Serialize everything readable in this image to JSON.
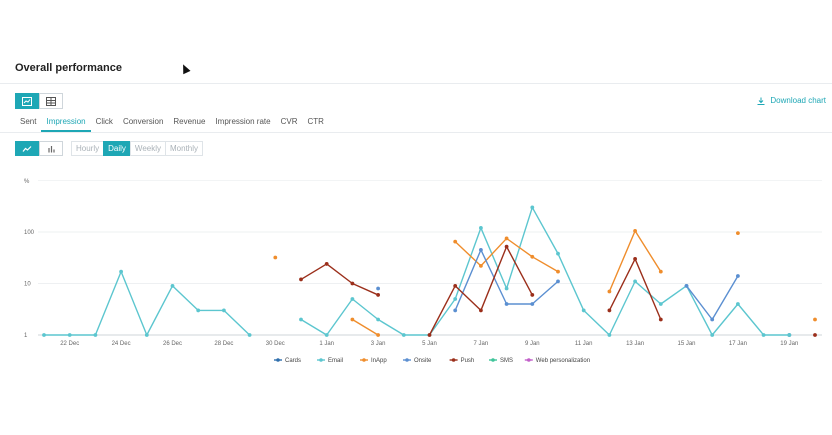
{
  "title": "Overall performance",
  "download_label": "Download chart",
  "tabs": [
    "Sent",
    "Impression",
    "Click",
    "Conversion",
    "Revenue",
    "Impression rate",
    "CVR",
    "CTR"
  ],
  "active_tab": "Impression",
  "granularity": [
    "Hourly",
    "Daily",
    "Weekly",
    "Monthly"
  ],
  "active_granularity": "Daily",
  "chart_data": {
    "type": "line",
    "yscale": "log",
    "y_unit_label": "%",
    "y_ticks": [
      1,
      10,
      100
    ],
    "x_ticks": [
      "22 Dec",
      "24 Dec",
      "26 Dec",
      "28 Dec",
      "30 Dec",
      "1 Jan",
      "3 Jan",
      "5 Jan",
      "7 Jan",
      "9 Jan",
      "11 Jan",
      "13 Jan",
      "15 Jan",
      "17 Jan",
      "19 Jan"
    ],
    "x": [
      "21 Dec",
      "22 Dec",
      "23 Dec",
      "24 Dec",
      "25 Dec",
      "26 Dec",
      "27 Dec",
      "28 Dec",
      "29 Dec",
      "30 Dec",
      "31 Dec",
      "1 Jan",
      "2 Jan",
      "3 Jan",
      "4 Jan",
      "5 Jan",
      "6 Jan",
      "7 Jan",
      "8 Jan",
      "9 Jan",
      "10 Jan",
      "11 Jan",
      "12 Jan",
      "13 Jan",
      "14 Jan",
      "15 Jan",
      "16 Jan",
      "17 Jan",
      "18 Jan",
      "19 Jan",
      "20 Jan"
    ],
    "legend_position": "bottom",
    "series": [
      {
        "name": "Cards",
        "color": "#2f6fad",
        "values": [
          null,
          null,
          null,
          null,
          null,
          null,
          null,
          null,
          null,
          null,
          null,
          null,
          null,
          null,
          null,
          null,
          null,
          null,
          null,
          null,
          null,
          null,
          null,
          null,
          null,
          null,
          null,
          null,
          null,
          1,
          null
        ]
      },
      {
        "name": "Email",
        "color": "#5cc6cf",
        "values": [
          1,
          1,
          1,
          17,
          1,
          9,
          3,
          3,
          1,
          null,
          2,
          1,
          5,
          2,
          1,
          1,
          5,
          120,
          8,
          300,
          38,
          3,
          1,
          11,
          4,
          9,
          1,
          4,
          1,
          1,
          null
        ]
      },
      {
        "name": "InApp",
        "color": "#ef8d2c",
        "values": [
          null,
          null,
          null,
          null,
          null,
          null,
          null,
          null,
          null,
          32,
          null,
          null,
          2,
          1,
          null,
          null,
          65,
          22,
          75,
          33,
          17,
          null,
          7,
          105,
          17,
          null,
          null,
          95,
          null,
          null,
          2
        ]
      },
      {
        "name": "Onsite",
        "color": "#5b8fd1",
        "values": [
          null,
          null,
          null,
          null,
          null,
          null,
          null,
          null,
          null,
          null,
          null,
          null,
          null,
          8,
          null,
          null,
          3,
          45,
          4,
          4,
          11,
          null,
          null,
          null,
          null,
          9,
          2,
          14,
          null,
          null,
          null
        ]
      },
      {
        "name": "Push",
        "color": "#9b2f1b",
        "values": [
          null,
          null,
          null,
          null,
          null,
          null,
          null,
          null,
          null,
          null,
          12,
          24,
          10,
          6,
          null,
          1,
          9,
          3,
          52,
          6,
          null,
          null,
          3,
          30,
          2,
          null,
          null,
          null,
          null,
          null,
          1
        ]
      },
      {
        "name": "SMS",
        "color": "#3fc49a",
        "values": [
          null,
          null,
          null,
          null,
          null,
          null,
          null,
          null,
          null,
          null,
          null,
          null,
          null,
          null,
          null,
          null,
          null,
          null,
          null,
          null,
          null,
          null,
          null,
          null,
          null,
          null,
          null,
          null,
          null,
          null,
          null
        ]
      },
      {
        "name": "Web personalization",
        "color": "#c25fc9",
        "values": [
          null,
          null,
          null,
          null,
          null,
          null,
          null,
          null,
          null,
          null,
          null,
          null,
          null,
          null,
          null,
          null,
          null,
          null,
          null,
          null,
          null,
          null,
          null,
          null,
          null,
          null,
          null,
          null,
          null,
          null,
          null
        ]
      }
    ]
  }
}
